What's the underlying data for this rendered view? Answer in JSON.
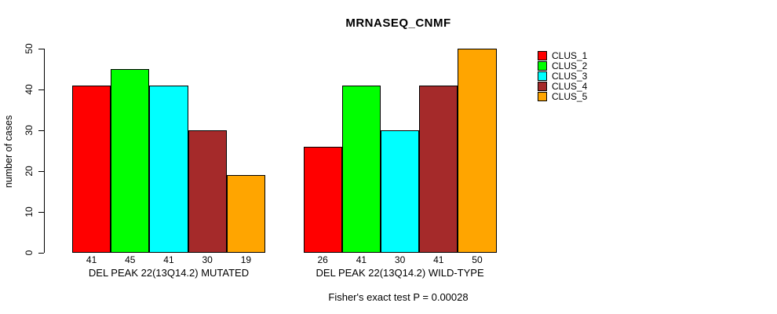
{
  "chart_data": {
    "type": "bar",
    "title": "MRNASEQ_CNMF",
    "ylabel": "number of cases",
    "ylim": [
      0,
      50
    ],
    "yticks": [
      0,
      10,
      20,
      30,
      40,
      50
    ],
    "grid": false,
    "categories": [
      "DEL PEAK 22(13Q14.2) MUTATED",
      "DEL PEAK 22(13Q14.2) WILD-TYPE"
    ],
    "series": [
      {
        "name": "CLUS_1",
        "color": "#ff0000",
        "values": [
          41,
          26
        ]
      },
      {
        "name": "CLUS_2",
        "color": "#00ff00",
        "values": [
          45,
          41
        ]
      },
      {
        "name": "CLUS_3",
        "color": "#00ffff",
        "values": [
          41,
          30
        ]
      },
      {
        "name": "CLUS_4",
        "color": "#a52a2a",
        "values": [
          30,
          41
        ]
      },
      {
        "name": "CLUS_5",
        "color": "#ffa500",
        "values": [
          19,
          50
        ]
      }
    ],
    "show_bar_value_labels": true,
    "legend_position": "top-right",
    "annotation": "Fisher's exact test P = 0.00028"
  }
}
